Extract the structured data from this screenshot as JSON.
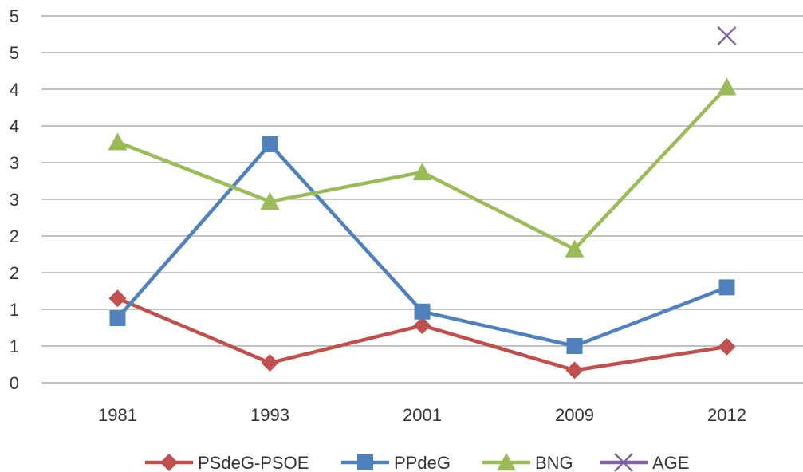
{
  "chart_data": {
    "type": "line",
    "title": "",
    "xlabel": "",
    "ylabel": "",
    "categories": [
      "1981",
      "1993",
      "2001",
      "2009",
      "2012"
    ],
    "ylim": [
      0,
      5
    ],
    "y_tick_labels": [
      "0",
      "1",
      "1",
      "2",
      "2",
      "3",
      "3",
      "4",
      "4",
      "5",
      "5"
    ],
    "grid": true,
    "legend_position": "bottom",
    "series": [
      {
        "name": "PSdeG-PSOE",
        "values": [
          1.15,
          0.27,
          0.78,
          0.17,
          0.49
        ],
        "color": "#C0504D",
        "marker": "diamond"
      },
      {
        "name": "PPdeG",
        "values": [
          0.88,
          3.25,
          0.97,
          0.5,
          1.3
        ],
        "color": "#4F81BD",
        "marker": "square"
      },
      {
        "name": "BNG",
        "values": [
          3.28,
          2.47,
          2.87,
          1.82,
          4.03
        ],
        "color": "#9BBB59",
        "marker": "triangle"
      },
      {
        "name": "AGE",
        "values": [
          null,
          null,
          null,
          null,
          4.73
        ],
        "color": "#8064A2",
        "marker": "x"
      }
    ]
  }
}
